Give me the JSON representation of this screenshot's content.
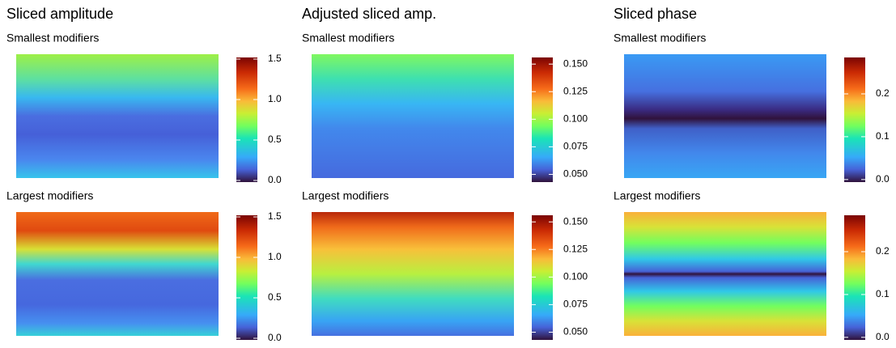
{
  "chart_data": [
    {
      "type": "heatmap",
      "title": "Sliced amplitude",
      "colormap": "turbo",
      "panels": [
        {
          "subtitle": "Smallest modifiers",
          "zlim": [
            -0.02,
            1.52
          ],
          "zticks": [
            {
              "value": 0,
              "label": "0.0"
            },
            0.5,
            {
              "value": 1,
              "label": "1.0"
            },
            1.5
          ]
        },
        {
          "subtitle": "Largest modifiers",
          "zlim": [
            -0.02,
            1.52
          ],
          "zticks": [
            {
              "value": 0,
              "label": "0.0"
            },
            0.5,
            {
              "value": 1,
              "label": "1.0"
            },
            1.5
          ]
        }
      ]
    },
    {
      "type": "heatmap",
      "title": "Adjusted sliced amp.",
      "colormap": "turbo",
      "panels": [
        {
          "subtitle": "Smallest modifiers",
          "zlim": [
            0.043,
            0.156
          ],
          "zticks": [
            {
              "value": 0.05,
              "label": "0.050"
            },
            0.075,
            {
              "value": 0.1,
              "label": "0.100"
            },
            0.125,
            {
              "value": 0.15,
              "label": "0.150"
            }
          ]
        },
        {
          "subtitle": "Largest modifiers",
          "zlim": [
            0.043,
            0.156
          ],
          "zticks": [
            {
              "value": 0.05,
              "label": "0.050"
            },
            0.075,
            {
              "value": 0.1,
              "label": "0.100"
            },
            0.125,
            {
              "value": 0.15,
              "label": "0.150"
            }
          ]
        }
      ]
    },
    {
      "type": "heatmap",
      "title": "Sliced phase",
      "colormap": "turbo",
      "panels": [
        {
          "subtitle": "Smallest modifiers",
          "zlim": [
            -0.006,
            0.285
          ],
          "zticks": [
            {
              "value": 0,
              "label": "0.0"
            },
            0.1,
            0.2
          ]
        },
        {
          "subtitle": "Largest modifiers",
          "zlim": [
            -0.006,
            0.285
          ],
          "zticks": [
            {
              "value": 0,
              "label": "0.0"
            },
            0.1,
            0.2
          ]
        }
      ]
    }
  ]
}
